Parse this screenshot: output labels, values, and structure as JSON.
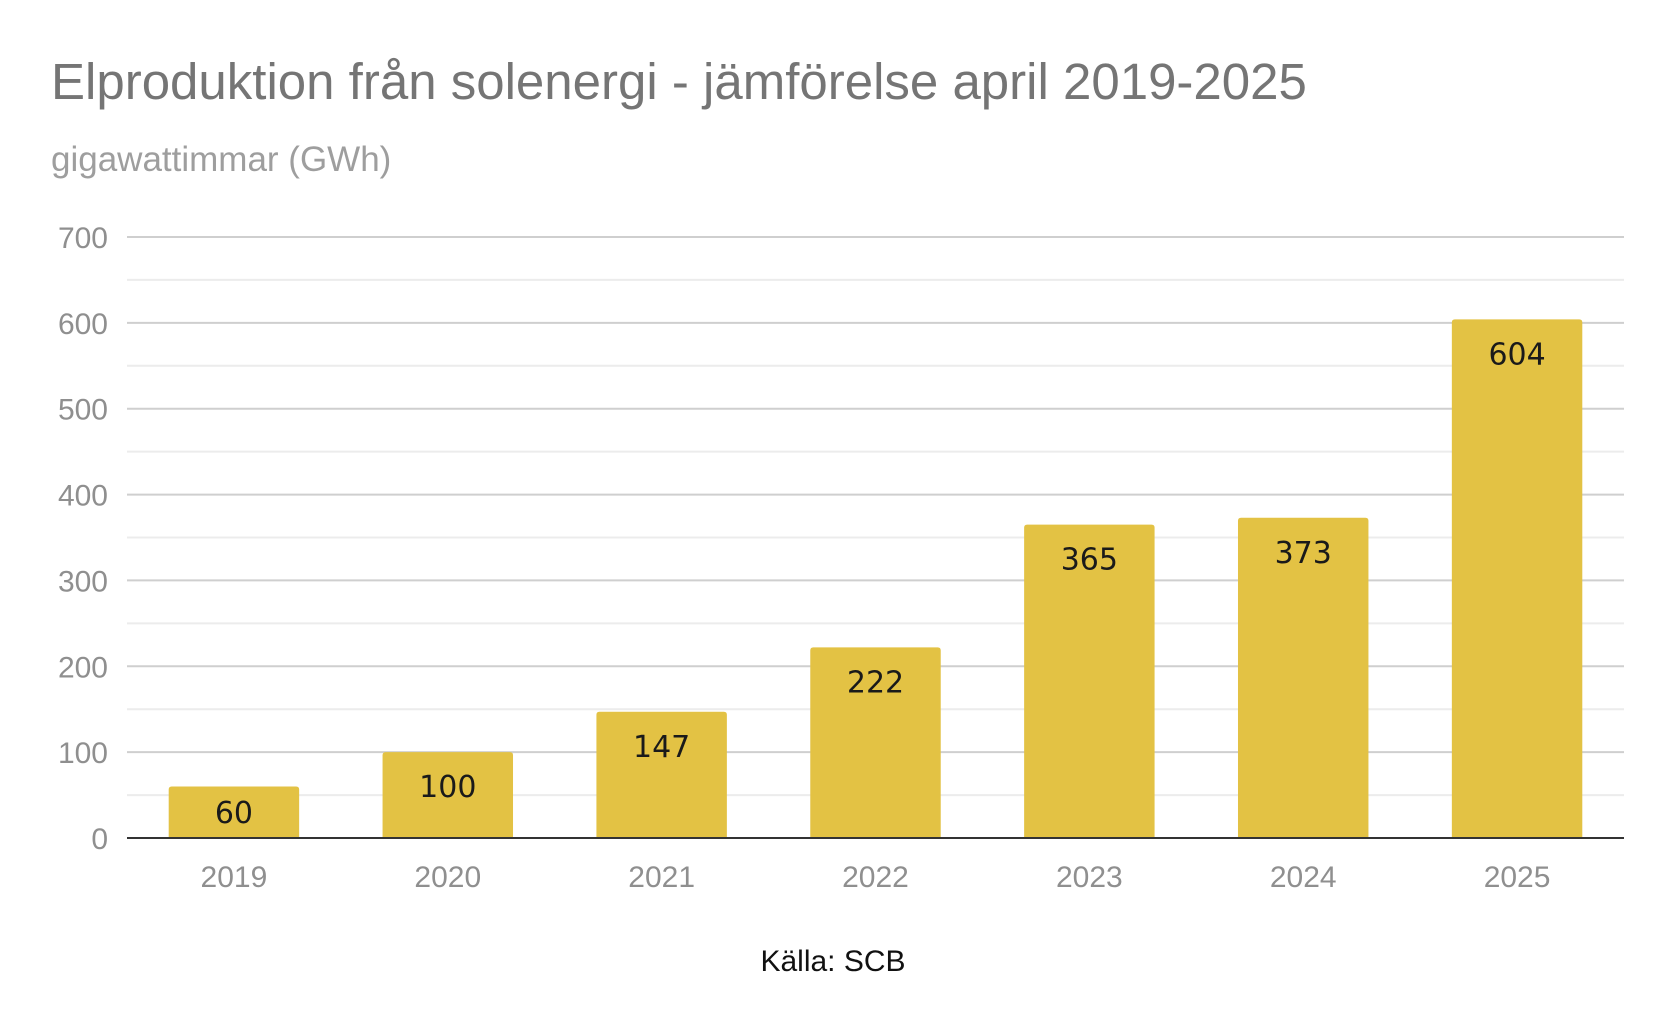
{
  "chart_data": {
    "type": "bar",
    "title": "Elproduktion från solenergi - jämförelse april 2019-2025",
    "subtitle": "gigawattimmar (GWh)",
    "categories": [
      "2019",
      "2020",
      "2021",
      "2022",
      "2023",
      "2024",
      "2025"
    ],
    "values": [
      60,
      100,
      147,
      222,
      365,
      373,
      604
    ],
    "data_labels": [
      "60",
      "100",
      "147",
      "222",
      "365",
      "373",
      "604"
    ],
    "ylim": [
      0,
      700
    ],
    "yticks": [
      0,
      100,
      200,
      300,
      400,
      500,
      600,
      700
    ],
    "ytick_labels": [
      "0",
      "100",
      "200",
      "300",
      "400",
      "500",
      "600",
      "700"
    ],
    "xlabel": "",
    "ylabel": "",
    "grid": true,
    "minor_grid": true,
    "legend": "none",
    "bar_color": "#e3c244",
    "source": "Källa: SCB"
  }
}
